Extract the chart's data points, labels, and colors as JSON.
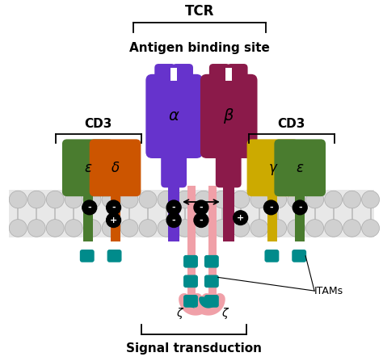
{
  "title": "TCR",
  "subtitle": "Antigen binding site",
  "cd3_left_label": "CD3",
  "cd3_right_label": "CD3",
  "signal_label": "Signal transduction",
  "itams_label": "ITAMs",
  "alpha_label": "α",
  "beta_label": "β",
  "epsilon_left_label": "ε",
  "delta_label": "δ",
  "gamma_label": "γ",
  "epsilon_right_label": "ε",
  "zeta_left_label": "ζ",
  "zeta_right_label": "ζ",
  "colors": {
    "alpha": "#6633cc",
    "beta": "#8b1a4a",
    "epsilon_left": "#4a7c2f",
    "delta": "#cc5500",
    "gamma": "#ccaa00",
    "epsilon_right": "#4a7c2f",
    "zeta": "#f0a0a8",
    "itam_teal": "#008b8b",
    "membrane_gray": "#c8c8c8",
    "membrane_outline": "#aaaaaa",
    "bg_color": "#ffffff"
  }
}
